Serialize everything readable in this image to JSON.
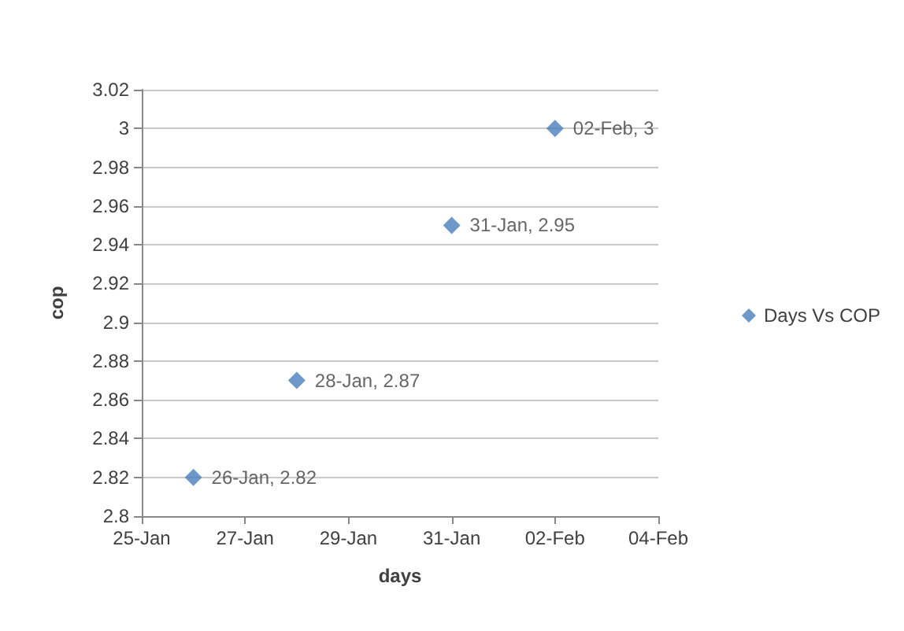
{
  "chart_data": {
    "type": "scatter",
    "xlabel": "days",
    "ylabel": "cop",
    "x": [
      "--01-26",
      "--01-28",
      "--01-31",
      "--02-02"
    ],
    "series": [
      {
        "name": "Days Vs COP",
        "color": "#4a7ebb",
        "values": [
          2.82,
          2.87,
          2.95,
          3
        ],
        "value_labels": [
          "26-Jan, 2.82",
          "28-Jan, 2.87",
          "31-Jan, 2.95",
          "02-Feb, 3"
        ]
      }
    ],
    "xlim": [
      "--01-25",
      "--02-04"
    ],
    "xticks": [
      {
        "value": "--01-25",
        "label": "25-Jan"
      },
      {
        "value": "--01-27",
        "label": "27-Jan"
      },
      {
        "value": "--01-29",
        "label": "29-Jan"
      },
      {
        "value": "--01-31",
        "label": "31-Jan"
      },
      {
        "value": "--02-02",
        "label": "02-Feb"
      },
      {
        "value": "--02-04",
        "label": "04-Feb"
      }
    ],
    "ylim": [
      2.8,
      3.02
    ],
    "yticks": [
      2.8,
      2.82,
      2.84,
      2.86,
      2.88,
      2.9,
      2.92,
      2.94,
      2.96,
      2.98,
      3,
      3.02
    ],
    "grid": "y",
    "legend": "right",
    "marker": "diamond"
  }
}
